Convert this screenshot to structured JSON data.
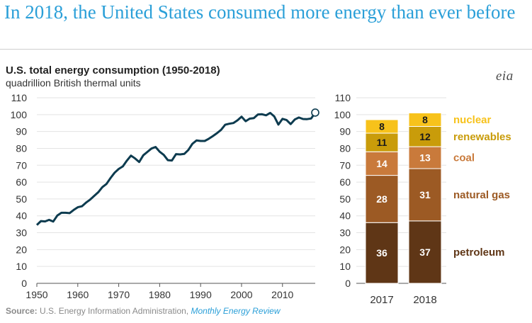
{
  "headline": "In 2018, the United States consumed more energy than ever before",
  "logo_text": "eia",
  "source": {
    "label": "Source:",
    "agency": "U.S. Energy Information Administration,",
    "publication": "Monthly Energy Review"
  },
  "colors": {
    "headline": "#2a9fd8",
    "line": "#0d3b4f",
    "nuclear": "#f7c21b",
    "renewables": "#c99c0a",
    "coal": "#c97a3b",
    "natural_gas": "#9c5a24",
    "petroleum": "#5f3616"
  },
  "chart_data": [
    {
      "type": "line",
      "title": "U.S. total energy consumption (1950-2018)",
      "subtitle": "quadrillion British thermal units",
      "xlabel": "",
      "ylabel": "",
      "xlim": [
        1950,
        2018
      ],
      "ylim": [
        0,
        110
      ],
      "x_ticks": [
        1950,
        1960,
        1970,
        1980,
        1990,
        2000,
        2010
      ],
      "y_ticks": [
        0,
        10,
        20,
        30,
        40,
        50,
        60,
        70,
        80,
        90,
        100,
        110
      ],
      "grid": "horizontal",
      "series": [
        {
          "name": "Total energy consumption",
          "x": [
            1950,
            1951,
            1952,
            1953,
            1954,
            1955,
            1956,
            1957,
            1958,
            1959,
            1960,
            1961,
            1962,
            1963,
            1964,
            1965,
            1966,
            1967,
            1968,
            1969,
            1970,
            1971,
            1972,
            1973,
            1974,
            1975,
            1976,
            1977,
            1978,
            1979,
            1980,
            1981,
            1982,
            1983,
            1984,
            1985,
            1986,
            1987,
            1988,
            1989,
            1990,
            1991,
            1992,
            1993,
            1994,
            1995,
            1996,
            1997,
            1998,
            1999,
            2000,
            2001,
            2002,
            2003,
            2004,
            2005,
            2006,
            2007,
            2008,
            2009,
            2010,
            2011,
            2012,
            2013,
            2014,
            2015,
            2016,
            2017,
            2018
          ],
          "values": [
            34.6,
            36.9,
            36.7,
            37.6,
            36.6,
            40.2,
            41.8,
            41.8,
            41.6,
            43.5,
            45.1,
            45.7,
            47.8,
            49.6,
            51.8,
            54.0,
            57.0,
            58.9,
            62.4,
            65.6,
            67.8,
            69.3,
            72.7,
            75.7,
            74.0,
            71.9,
            75.9,
            77.9,
            79.9,
            80.8,
            78.0,
            76.1,
            73.0,
            72.8,
            76.6,
            76.4,
            76.7,
            79.0,
            82.7,
            84.7,
            84.4,
            84.4,
            85.7,
            87.3,
            89.0,
            91.0,
            94.0,
            94.6,
            95.0,
            96.6,
            98.8,
            96.1,
            97.6,
            97.9,
            100.1,
            100.2,
            99.6,
            101.0,
            98.9,
            94.1,
            97.5,
            96.8,
            94.4,
            97.1,
            98.3,
            97.4,
            97.3,
            97.7,
            101.2
          ],
          "endpoint_marker": 2018
        }
      ]
    },
    {
      "type": "bar",
      "stacked": true,
      "categories": [
        "2017",
        "2018"
      ],
      "ylim": [
        0,
        110
      ],
      "y_ticks": [
        0,
        10,
        20,
        30,
        40,
        50,
        60,
        70,
        80,
        90,
        100,
        110
      ],
      "grid": "horizontal",
      "series": [
        {
          "name": "petroleum",
          "values": [
            36,
            37
          ]
        },
        {
          "name": "natural gas",
          "values": [
            28,
            31
          ]
        },
        {
          "name": "coal",
          "values": [
            14,
            13
          ]
        },
        {
          "name": "renewables",
          "values": [
            11,
            12
          ]
        },
        {
          "name": "nuclear",
          "values": [
            8,
            8
          ]
        }
      ],
      "legend_placement": "right of bars, aligned with segments"
    }
  ]
}
